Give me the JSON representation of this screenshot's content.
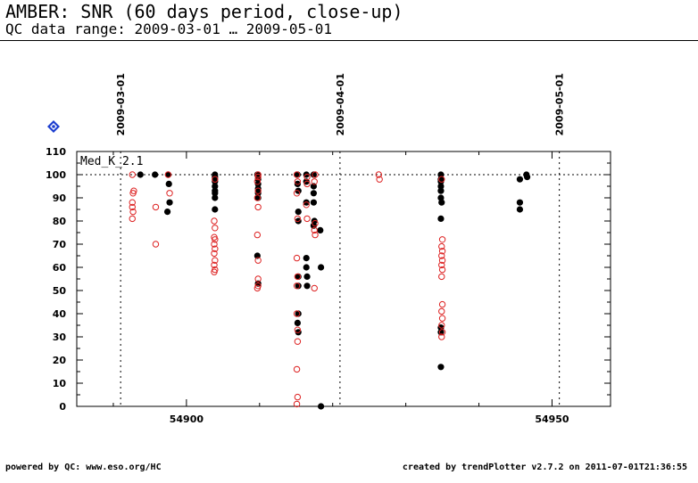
{
  "header": {
    "title": "AMBER: SNR (60 days period, close-up)",
    "subtitle": "QC data range: 2009-03-01 … 2009-05-01"
  },
  "footer": {
    "left": "powered by QC: www.eso.org/HC",
    "right": "created by trendPlotter v2.7.2 on 2011-07-01T21:36:55"
  },
  "colors": {
    "black_series": "#000000",
    "red_series": "#dd2222",
    "badge": "#1a3ccf"
  },
  "icons": {
    "badge": "info-diamond-icon"
  },
  "chart_data": {
    "type": "scatter",
    "title": "",
    "panel_label": "Med_K_2.1",
    "xlim": [
      54885,
      54958
    ],
    "ylim": [
      0,
      110
    ],
    "x_ticks": [
      54900,
      54950
    ],
    "x_tick_labels": [
      "54900",
      "54950"
    ],
    "y_ticks": [
      0,
      5,
      10,
      15,
      20,
      25,
      30,
      35,
      40,
      45,
      50,
      55,
      60,
      65,
      70,
      75,
      80,
      85,
      90,
      95,
      100,
      105,
      110
    ],
    "y_tick_labels": [
      "0",
      "10",
      "20",
      "30",
      "40",
      "50",
      "60",
      "70",
      "80",
      "90",
      "100",
      "110"
    ],
    "y_label_values": [
      0,
      10,
      20,
      30,
      40,
      50,
      60,
      70,
      80,
      90,
      100,
      110
    ],
    "reference_line": 100,
    "date_markers": [
      {
        "x": 54891,
        "label": "2009-03-01"
      },
      {
        "x": 54921,
        "label": "2009-04-01"
      },
      {
        "x": 54951,
        "label": "2009-05-01"
      }
    ],
    "grid": false,
    "series": [
      {
        "marker": "filled-circle",
        "x": [
          54893.7,
          54895.7,
          54897.5,
          54897.6,
          54897.7,
          54897.4,
          54903.9,
          54903.9,
          54903.9,
          54903.9,
          54903.9,
          54903.9,
          54903.9,
          54903.9,
          54909.7,
          54909.8,
          54909.8,
          54909.8,
          54909.8,
          54909.8,
          54909.7,
          54909.8,
          54915.2,
          54915.2,
          54915.3,
          54915.3,
          54915.3,
          54915.3,
          54915.3,
          54915.3,
          54915.2,
          54915.3,
          54916.4,
          54916.4,
          54916.4,
          54916.4,
          54916.4,
          54916.5,
          54916.5,
          54917.4,
          54917.4,
          54917.4,
          54917.4,
          54917.4,
          54917.5,
          54918.3,
          54918.4,
          54918.4,
          54934.8,
          54934.8,
          54934.8,
          54934.8,
          54934.8,
          54934.8,
          54934.9,
          54934.8,
          54934.8,
          54934.8,
          54934.8,
          54945.6,
          54945.6,
          54945.6,
          54946.5,
          54946.6
        ],
        "y": [
          100,
          100,
          100,
          96,
          88,
          84,
          100,
          99,
          97,
          95,
          93,
          92,
          90,
          85,
          100,
          98,
          96,
          94,
          92,
          90,
          65,
          53,
          100,
          96,
          93,
          84,
          80,
          56,
          52,
          40,
          36,
          32,
          100,
          97,
          88,
          64,
          60,
          56,
          52,
          100,
          95,
          92,
          88,
          78,
          80,
          76,
          60,
          0,
          100,
          98,
          97,
          95,
          93,
          90,
          88,
          81,
          34,
          32,
          17,
          98,
          88,
          85,
          100,
          99
        ]
      },
      {
        "marker": "hollow-circle",
        "x": [
          54892.6,
          54892.8,
          54892.7,
          54892.6,
          54892.6,
          54892.7,
          54892.6,
          54895.8,
          54895.8,
          54897.5,
          54897.7,
          54903.8,
          54903.9,
          54903.8,
          54903.9,
          54903.8,
          54903.9,
          54903.8,
          54903.9,
          54903.8,
          54903.9,
          54903.8,
          54903.9,
          54909.8,
          54909.7,
          54909.8,
          54909.7,
          54909.8,
          54909.7,
          54909.8,
          54909.8,
          54909.8,
          54909.7,
          54909.8,
          54915.1,
          54915.2,
          54915.1,
          54915.2,
          54915.1,
          54915.2,
          54915.1,
          54915.2,
          54915.1,
          54915.2,
          54915.1,
          54915.2,
          54915.1,
          54916.5,
          54916.5,
          54916.4,
          54916.5,
          54917.6,
          54917.5,
          54917.6,
          54917.5,
          54917.6,
          54917.5,
          54926.3,
          54926.4,
          54934.9,
          54935.0,
          54934.9,
          54935.0,
          54934.9,
          54935.0,
          54934.9,
          54935.0,
          54934.9,
          54935.0,
          54934.9,
          54935.0,
          54934.9,
          54935.0,
          54934.9
        ],
        "y": [
          100,
          93,
          92,
          88,
          86,
          84,
          81,
          86,
          70,
          100,
          92,
          80,
          77,
          73,
          72,
          70,
          68,
          66,
          63,
          61,
          59,
          58,
          98,
          100,
          97,
          93,
          90,
          86,
          74,
          63,
          55,
          52,
          51,
          99,
          100,
          97,
          92,
          81,
          64,
          56,
          52,
          28,
          16,
          4,
          1,
          33,
          40,
          99,
          96,
          87,
          81,
          100,
          97,
          79,
          76,
          74,
          51,
          100,
          98,
          98,
          72,
          69,
          67,
          65,
          63,
          61,
          59,
          56,
          44,
          41,
          38,
          35,
          32,
          30
        ]
      }
    ]
  }
}
